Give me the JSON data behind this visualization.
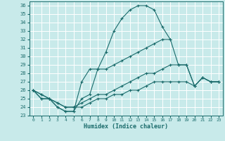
{
  "xlabel": "Humidex (Indice chaleur)",
  "bg_color": "#c8eaea",
  "grid_color": "#ffffff",
  "line_color": "#1a6b6b",
  "marker": "+",
  "xlim": [
    -0.5,
    23.5
  ],
  "ylim": [
    23,
    36.5
  ],
  "xticks": [
    0,
    1,
    2,
    3,
    4,
    5,
    6,
    7,
    8,
    9,
    10,
    11,
    12,
    13,
    14,
    15,
    16,
    17,
    18,
    19,
    20,
    21,
    22,
    23
  ],
  "yticks": [
    23,
    24,
    25,
    26,
    27,
    28,
    29,
    30,
    31,
    32,
    33,
    34,
    35,
    36
  ],
  "lines": [
    {
      "x": [
        0,
        1,
        2,
        3,
        4,
        5,
        6,
        7,
        8,
        9,
        10,
        11,
        12,
        13,
        14,
        15,
        16,
        17,
        18,
        19,
        20,
        21,
        22,
        23
      ],
      "y": [
        26,
        25,
        25,
        24,
        23.5,
        23.5,
        27,
        28.5,
        28.5,
        30.5,
        33,
        34.5,
        35.5,
        36,
        36,
        35.5,
        33.5,
        32,
        29,
        29,
        26.5,
        27.5,
        27,
        27
      ]
    },
    {
      "x": [
        0,
        1,
        2,
        3,
        4,
        5,
        6,
        7,
        8,
        9,
        10,
        11,
        12,
        13,
        14,
        15,
        16,
        17
      ],
      "y": [
        26,
        25,
        25,
        24,
        23.5,
        23.5,
        25,
        25.5,
        28.5,
        28.5,
        29,
        29.5,
        30,
        30.5,
        31,
        31.5,
        32,
        32
      ]
    },
    {
      "x": [
        0,
        1,
        2,
        3,
        4,
        5,
        6,
        7,
        8,
        9,
        10,
        11,
        12,
        13,
        14,
        15,
        16,
        17,
        18,
        19,
        20,
        21,
        22,
        23
      ],
      "y": [
        26,
        25.5,
        25,
        24.5,
        24,
        24,
        24.5,
        25,
        25.5,
        25.5,
        26,
        26.5,
        27,
        27.5,
        28,
        28,
        28.5,
        29,
        29,
        29,
        26.5,
        27.5,
        27,
        27
      ]
    },
    {
      "x": [
        0,
        1,
        2,
        3,
        4,
        5,
        6,
        7,
        8,
        9,
        10,
        11,
        12,
        13,
        14,
        15,
        16,
        17,
        18,
        19,
        20,
        21,
        22,
        23
      ],
      "y": [
        26,
        25.5,
        25,
        24.5,
        24,
        24,
        24,
        24.5,
        25,
        25,
        25.5,
        25.5,
        26,
        26,
        26.5,
        27,
        27,
        27,
        27,
        27,
        26.5,
        27.5,
        27,
        27
      ]
    }
  ]
}
